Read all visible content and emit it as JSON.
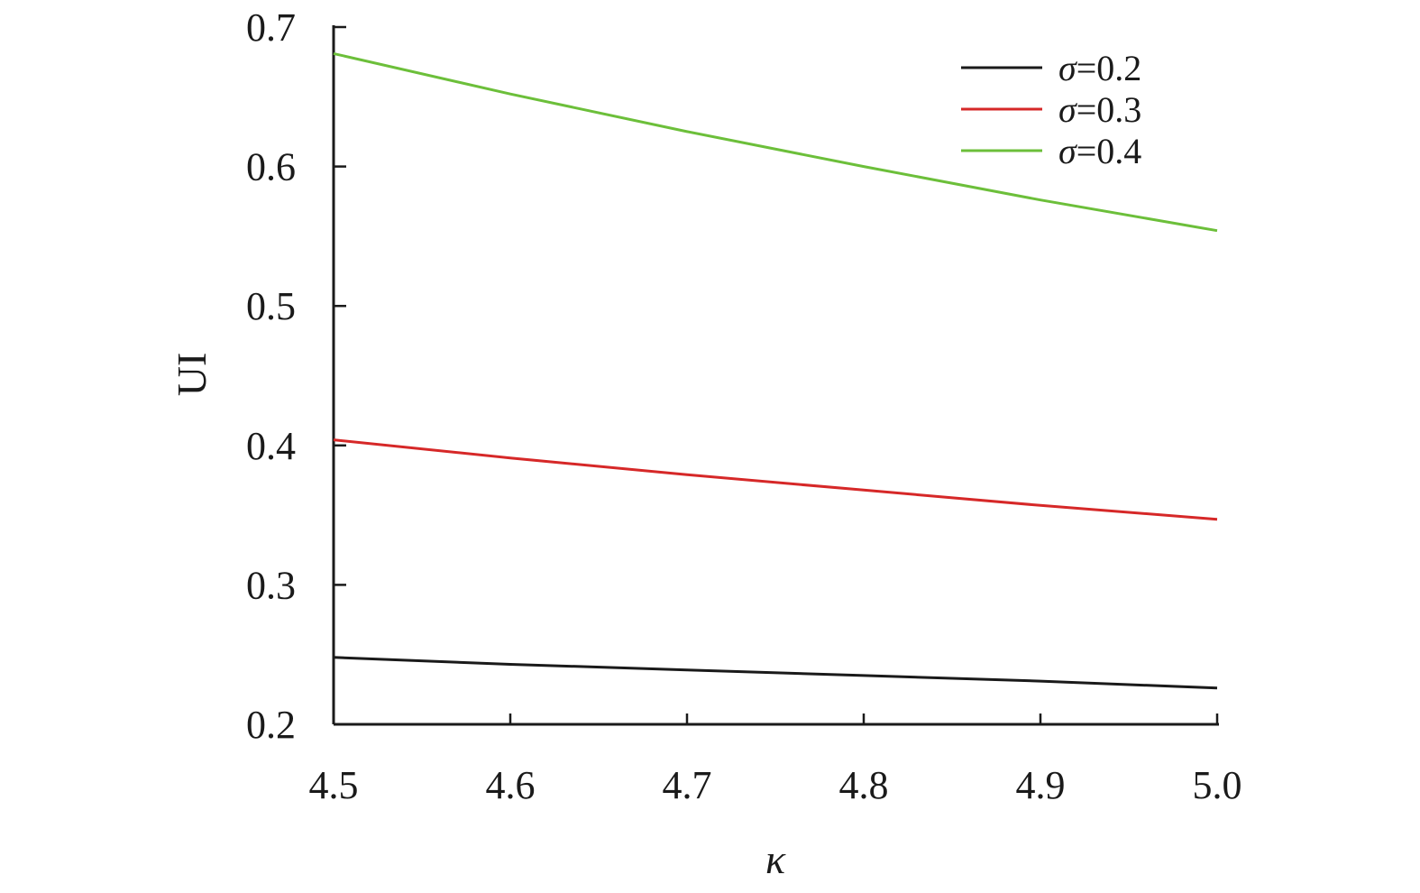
{
  "chart_data": {
    "type": "line",
    "xlabel": "κ",
    "ylabel": "UI",
    "xlim": [
      4.5,
      5.0
    ],
    "ylim": [
      0.2,
      0.7
    ],
    "xticks": [
      4.5,
      4.6,
      4.7,
      4.8,
      4.9,
      5.0
    ],
    "xtick_labels": [
      "4.5",
      "4.6",
      "4.7",
      "4.8",
      "4.9",
      "5.0"
    ],
    "yticks": [
      0.2,
      0.3,
      0.4,
      0.5,
      0.6,
      0.7
    ],
    "ytick_labels": [
      "0.2",
      "0.3",
      "0.4",
      "0.5",
      "0.6",
      "0.7"
    ],
    "grid": false,
    "legend_position": "top-right",
    "series": [
      {
        "name": "σ=0.2",
        "name_symbol": "σ",
        "name_rest": "=0.2",
        "color": "#1a1a1a",
        "x": [
          4.5,
          4.6,
          4.7,
          4.8,
          4.9,
          5.0
        ],
        "y": [
          0.248,
          0.243,
          0.239,
          0.235,
          0.231,
          0.226
        ]
      },
      {
        "name": "σ=0.3",
        "name_symbol": "σ",
        "name_rest": "=0.3",
        "color": "#d62828",
        "x": [
          4.5,
          4.6,
          4.7,
          4.8,
          4.9,
          5.0
        ],
        "y": [
          0.404,
          0.391,
          0.379,
          0.368,
          0.357,
          0.347
        ]
      },
      {
        "name": "σ=0.4",
        "name_symbol": "σ",
        "name_rest": "=0.4",
        "color": "#6cbf3a",
        "x": [
          4.5,
          4.6,
          4.7,
          4.8,
          4.9,
          5.0
        ],
        "y": [
          0.681,
          0.652,
          0.625,
          0.6,
          0.576,
          0.554
        ]
      }
    ]
  }
}
